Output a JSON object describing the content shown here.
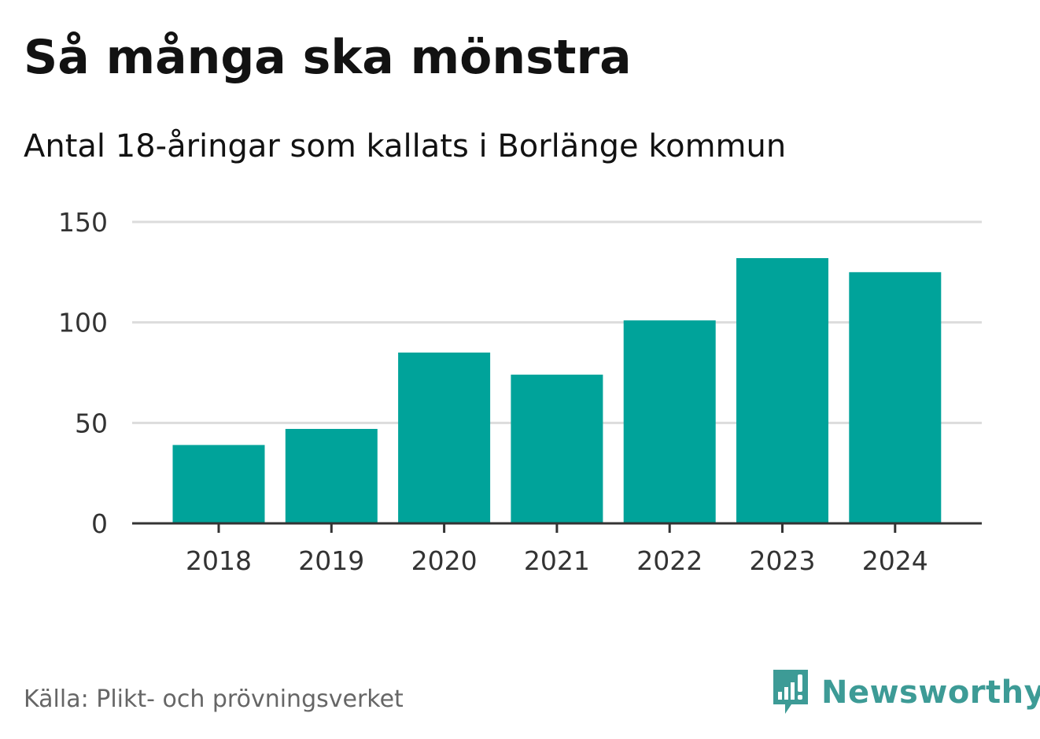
{
  "header": {
    "title": "Så många ska mönstra",
    "subtitle": "Antal 18-åringar som kallats i Borlänge kommun"
  },
  "footer": {
    "source": "Källa: Plikt- och prövningsverket",
    "brand": "Newsworthy",
    "brand_icon": "newsworthy-logo-icon"
  },
  "colors": {
    "bar": "#00a39a",
    "grid": "#dcdcdc",
    "axis": "#333333",
    "brand": "#3d9b96"
  },
  "chart_data": {
    "type": "bar",
    "categories": [
      "2018",
      "2019",
      "2020",
      "2021",
      "2022",
      "2023",
      "2024"
    ],
    "values": [
      39,
      47,
      85,
      74,
      101,
      132,
      125
    ],
    "ylim": [
      0,
      150
    ],
    "yticks": [
      0,
      50,
      100,
      150
    ],
    "grid": true
  }
}
